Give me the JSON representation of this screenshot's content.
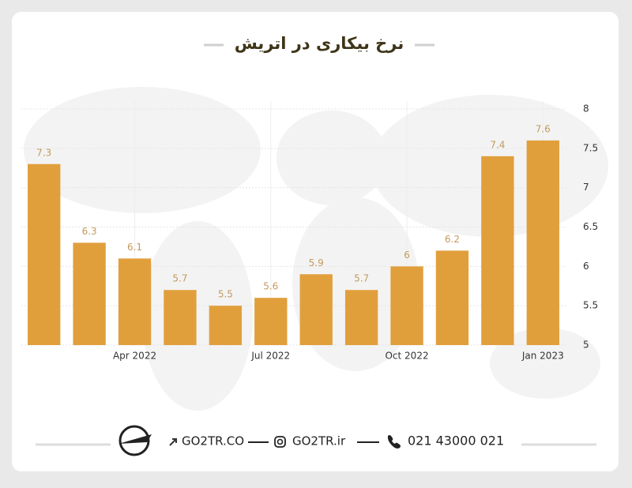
{
  "chart_data": {
    "type": "bar",
    "title": "نرخ بیکاری در اتریش",
    "categories": [
      null,
      null,
      "Apr 2022",
      null,
      null,
      "Jul 2022",
      null,
      null,
      "Oct 2022",
      null,
      null,
      "Jan 2023"
    ],
    "values": [
      7.3,
      6.3,
      6.1,
      5.7,
      5.5,
      5.6,
      5.9,
      5.7,
      6,
      6.2,
      7.4,
      7.6
    ],
    "color": "#e19f3c",
    "ylim": [
      5,
      8
    ],
    "yticks": [
      5,
      5.5,
      6,
      6.5,
      7,
      7.5,
      8
    ],
    "grid": true,
    "y_axis_side": "right"
  },
  "footer": {
    "website": "GO2TR.CO",
    "instagram": "GO2TR.ir",
    "phone": "021 43000 021"
  }
}
